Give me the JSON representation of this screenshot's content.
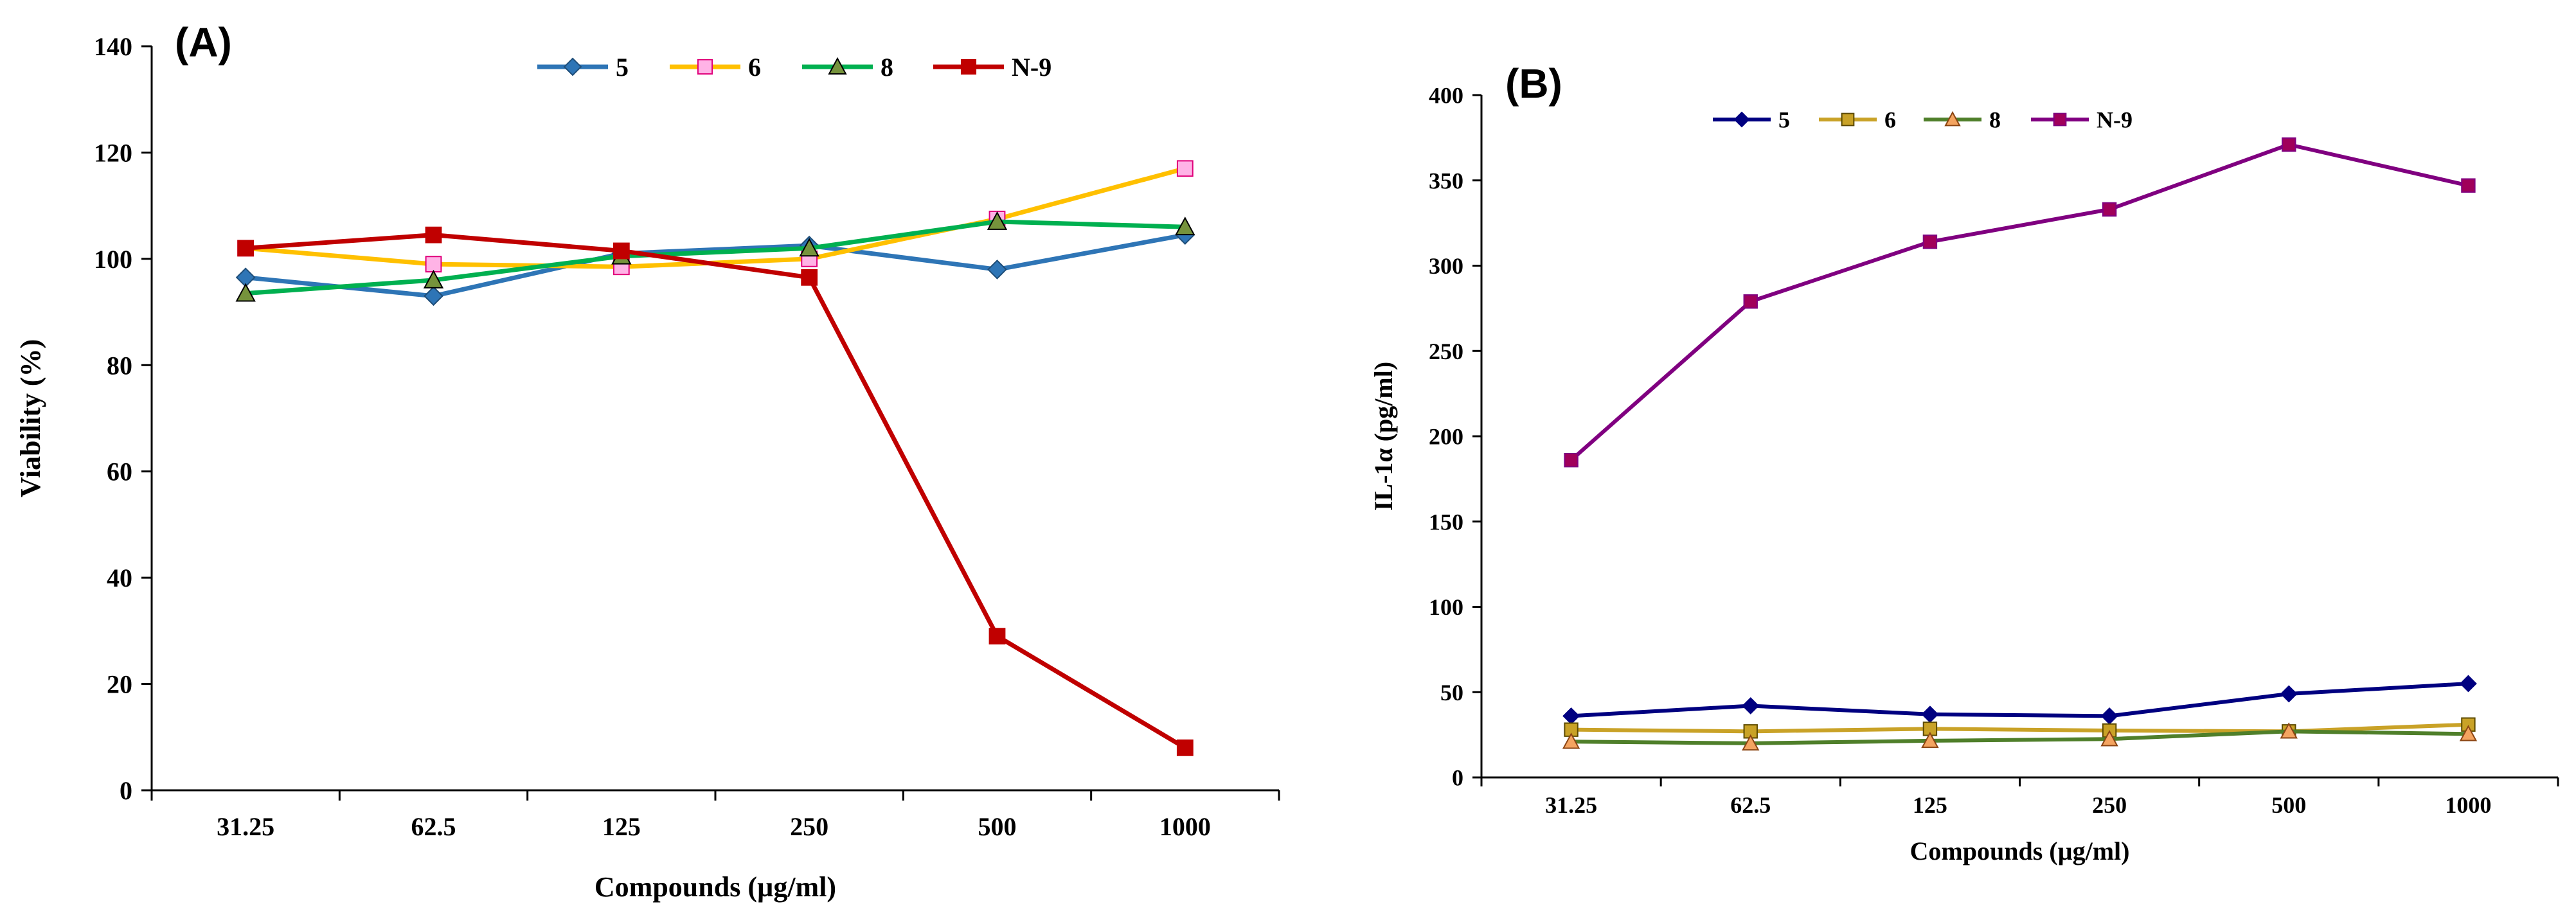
{
  "chart_data": [
    {
      "panel_label": "(A)",
      "type": "line",
      "title": "",
      "xlabel": "Compounds (µg/ml)",
      "ylabel": "Viability (%)",
      "categories": [
        "31.25",
        "62.5",
        "125",
        "250",
        "500",
        "1000"
      ],
      "ylim": [
        0,
        140
      ],
      "yticks": [
        "0",
        "20",
        "40",
        "60",
        "80",
        "100",
        "120",
        "140"
      ],
      "grid": false,
      "legend_position": "top",
      "series": [
        {
          "name": "5",
          "color": "#2E75B6",
          "marker": "diamond",
          "marker_fill": "#2E75B6",
          "marker_stroke": "#1F4E79",
          "values": [
            96.5,
            93,
            101,
            102.5,
            98,
            104.5
          ]
        },
        {
          "name": "6",
          "color": "#FFC000",
          "marker": "square",
          "marker_fill": "#FFB3E6",
          "marker_stroke": "#E0007A",
          "values": [
            102,
            99,
            98.5,
            100,
            107.5,
            117
          ]
        },
        {
          "name": "8",
          "color": "#00B050",
          "marker": "triangle",
          "marker_fill": "#76933C",
          "marker_stroke": "#000000",
          "values": [
            93.5,
            96,
            100.5,
            102,
            107,
            106
          ]
        },
        {
          "name": "N-9",
          "color": "#C00000",
          "marker": "square",
          "marker_fill": "#C00000",
          "marker_stroke": "#C00000",
          "values": [
            102,
            104.5,
            101.5,
            96.5,
            29,
            8
          ]
        }
      ]
    },
    {
      "panel_label": "(B)",
      "type": "line",
      "title": "",
      "xlabel": "Compounds (µg/ml)",
      "ylabel": "IL-1α (pg/ml)",
      "categories": [
        "31.25",
        "62.5",
        "125",
        "250",
        "500",
        "1000"
      ],
      "ylim": [
        0,
        400
      ],
      "yticks": [
        "0",
        "50",
        "100",
        "150",
        "200",
        "250",
        "300",
        "350",
        "400"
      ],
      "grid": false,
      "legend_position": "top",
      "series": [
        {
          "name": "5",
          "color": "#000080",
          "marker": "diamond",
          "marker_fill": "#000080",
          "marker_stroke": "#000080",
          "values": [
            36,
            42,
            37,
            36,
            49,
            55
          ]
        },
        {
          "name": "6",
          "color": "#C9A227",
          "marker": "square",
          "marker_fill": "#C9A227",
          "marker_stroke": "#5C4A00",
          "values": [
            28,
            27,
            28.5,
            27.5,
            27,
            31
          ]
        },
        {
          "name": "8",
          "color": "#4F7F2A",
          "marker": "triangle",
          "marker_fill": "#F4A460",
          "marker_stroke": "#8B4513",
          "values": [
            21,
            20,
            21.5,
            22.5,
            27,
            25.5
          ]
        },
        {
          "name": "N-9",
          "color": "#800080",
          "marker": "square",
          "marker_fill": "#A0005A",
          "marker_stroke": "#800080",
          "values": [
            186,
            279,
            314,
            333,
            371,
            347
          ]
        }
      ]
    }
  ]
}
